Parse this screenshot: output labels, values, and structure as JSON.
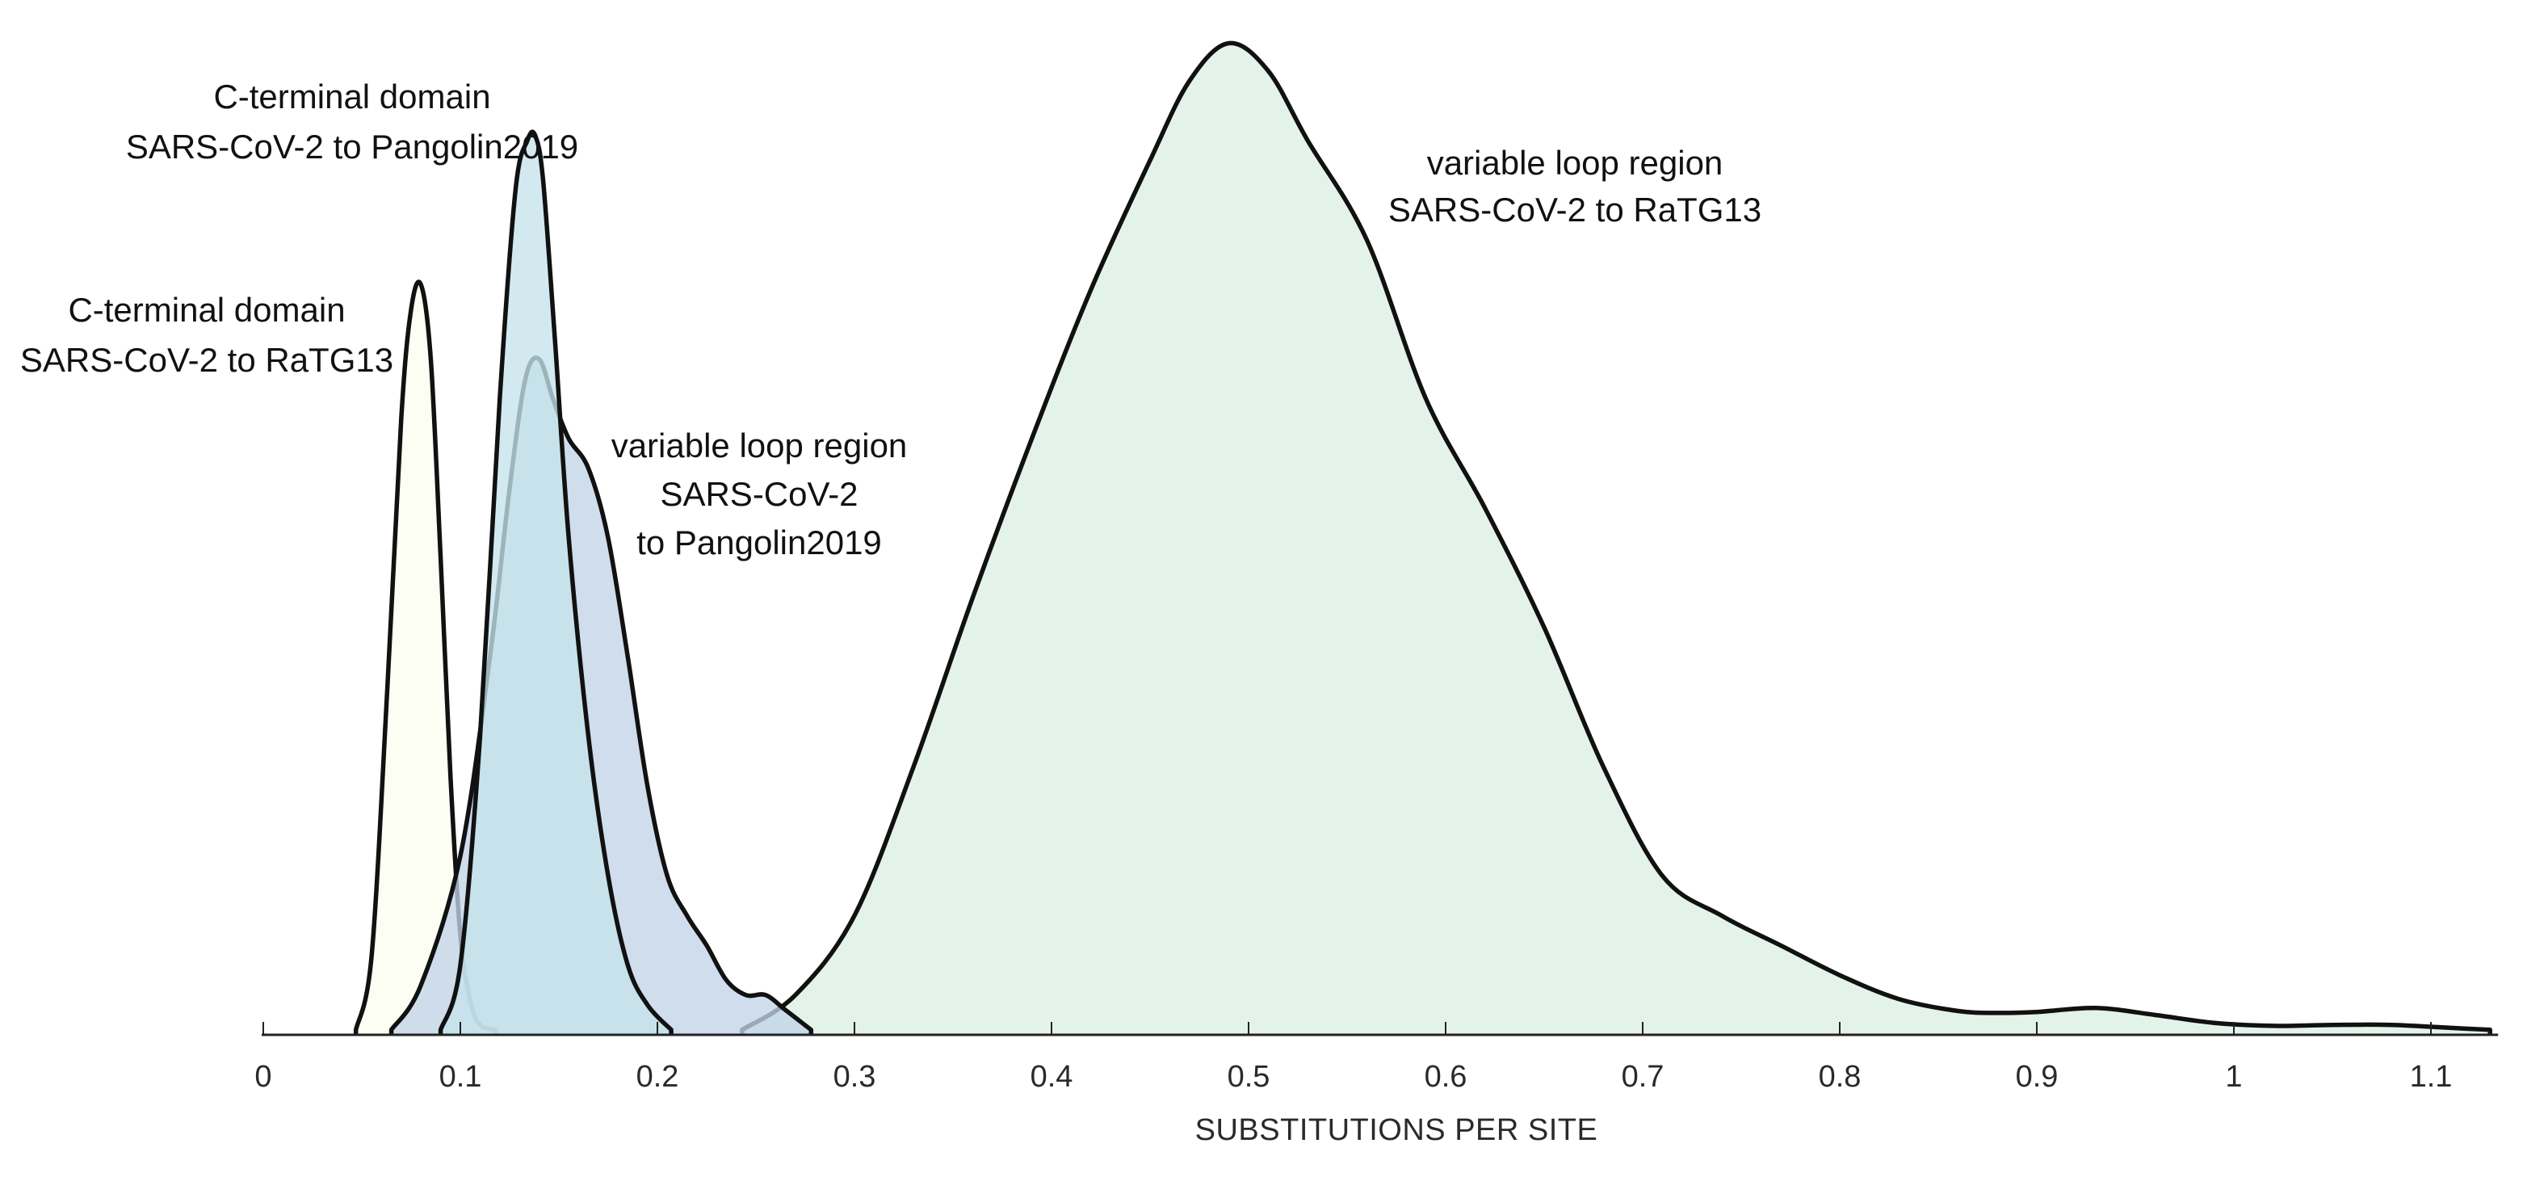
{
  "chart_data": {
    "type": "area",
    "title": "",
    "xlabel": "SUBSTITUTIONS PER SITE",
    "ylabel": "",
    "xlim": [
      0,
      1.13
    ],
    "ylim": [
      0,
      1.0
    ],
    "xticks": [
      0,
      0.1,
      0.2,
      0.3,
      0.4,
      0.5,
      0.6,
      0.7,
      0.8,
      0.9,
      1,
      1.1
    ],
    "xtick_labels": [
      "0",
      "0.1",
      "0.2",
      "0.3",
      "0.4",
      "0.5",
      "0.6",
      "0.7",
      "0.8",
      "0.9",
      "1",
      "1.1"
    ],
    "y_axis_shown": false,
    "grid": false,
    "legend": "none",
    "series": [
      {
        "label_lines": [
          "variable loop region",
          "SARS-CoV-2 to RaTG13"
        ],
        "fill": "#e4f3ea",
        "x": [
          0.243,
          0.27,
          0.3,
          0.33,
          0.36,
          0.39,
          0.42,
          0.45,
          0.47,
          0.49,
          0.51,
          0.53,
          0.56,
          0.59,
          0.62,
          0.65,
          0.68,
          0.71,
          0.74,
          0.77,
          0.8,
          0.83,
          0.86,
          0.88,
          0.9,
          0.93,
          0.96,
          0.99,
          1.02,
          1.05,
          1.08,
          1.11,
          1.13
        ],
        "y": [
          0.005,
          0.04,
          0.12,
          0.27,
          0.44,
          0.6,
          0.75,
          0.88,
          0.96,
          0.998,
          0.97,
          0.9,
          0.8,
          0.64,
          0.53,
          0.41,
          0.27,
          0.16,
          0.12,
          0.09,
          0.06,
          0.036,
          0.024,
          0.022,
          0.023,
          0.027,
          0.02,
          0.012,
          0.009,
          0.01,
          0.01,
          0.007,
          0.005
        ]
      },
      {
        "label_lines": [
          "C-terminal domain",
          "SARS-CoV-2 to RaTG13"
        ],
        "fill": "#fbfdf0",
        "x": [
          0.047,
          0.055,
          0.063,
          0.07,
          0.075,
          0.08,
          0.085,
          0.09,
          0.095,
          0.1,
          0.105,
          0.11,
          0.118
        ],
        "y": [
          0.005,
          0.08,
          0.35,
          0.62,
          0.73,
          0.755,
          0.68,
          0.48,
          0.26,
          0.1,
          0.035,
          0.01,
          0.005
        ]
      },
      {
        "label_lines": [
          "variable loop region",
          "SARS-CoV-2",
          "to Pangolin2019"
        ],
        "fill": "#c2d3e8",
        "x": [
          0.065,
          0.08,
          0.1,
          0.115,
          0.125,
          0.133,
          0.14,
          0.147,
          0.155,
          0.165,
          0.175,
          0.185,
          0.195,
          0.205,
          0.215,
          0.225,
          0.235,
          0.245,
          0.255,
          0.265,
          0.278
        ],
        "y": [
          0.005,
          0.05,
          0.18,
          0.38,
          0.55,
          0.66,
          0.68,
          0.64,
          0.6,
          0.57,
          0.5,
          0.38,
          0.25,
          0.16,
          0.12,
          0.09,
          0.055,
          0.04,
          0.04,
          0.025,
          0.005
        ]
      },
      {
        "label_lines": [
          "C-terminal domain",
          "SARS-CoV-2 to Pangolin2019"
        ],
        "fill": "#c5e3ec",
        "x": [
          0.09,
          0.1,
          0.11,
          0.12,
          0.128,
          0.134,
          0.138,
          0.142,
          0.148,
          0.155,
          0.165,
          0.175,
          0.185,
          0.195,
          0.207
        ],
        "y": [
          0.005,
          0.07,
          0.3,
          0.64,
          0.85,
          0.9,
          0.905,
          0.86,
          0.7,
          0.5,
          0.3,
          0.16,
          0.07,
          0.03,
          0.005
        ]
      }
    ]
  }
}
